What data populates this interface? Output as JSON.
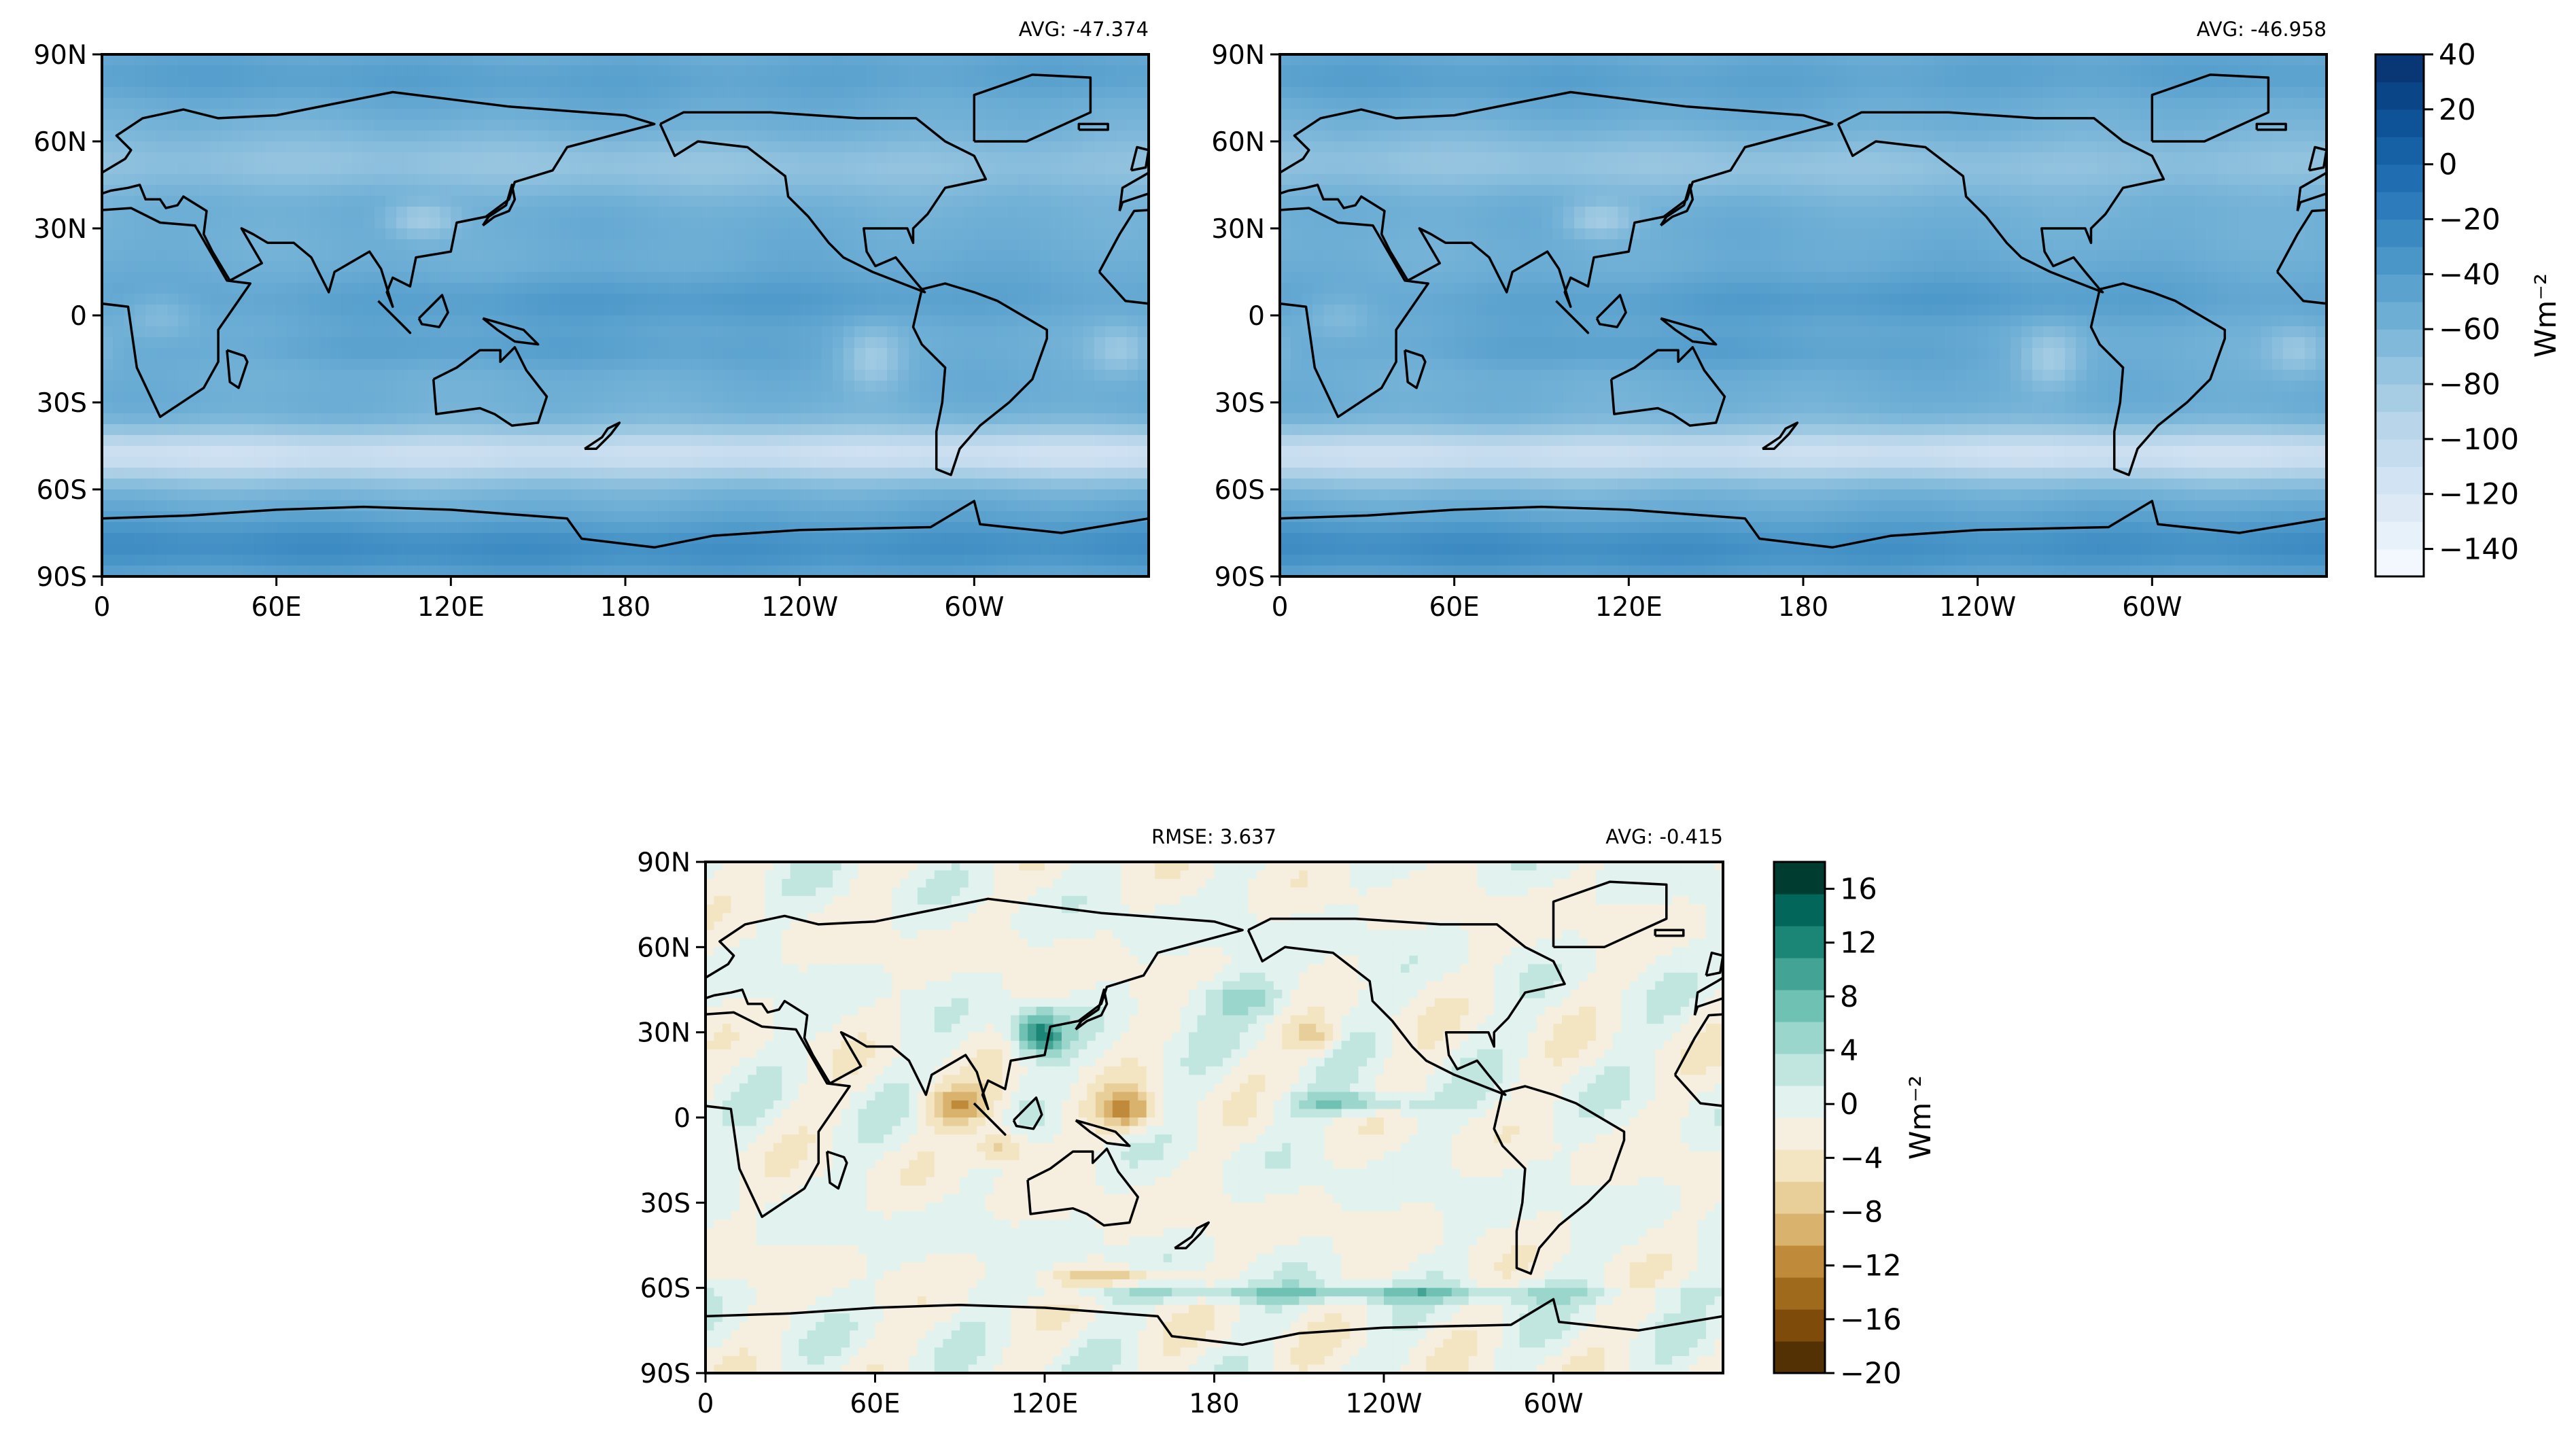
{
  "colors": {
    "blues_scale": [
      "#f7fbff",
      "#e3eef8",
      "#cfe1f2",
      "#b5d4e9",
      "#93c3df",
      "#6daed5",
      "#4b97c9",
      "#2f7ebc",
      "#1864aa",
      "#0a4a90",
      "#08306b"
    ],
    "diff_brown": [
      "#543005",
      "#7f4b0b",
      "#a06a1d",
      "#bf8a3a",
      "#d9b36e",
      "#e8cf9a",
      "#f3e4c2",
      "#f6efdf"
    ],
    "diff_green": [
      "#e1f2ef",
      "#c0e6df",
      "#9ad6cb",
      "#6fc1b3",
      "#43a496",
      "#1c8676",
      "#02665a",
      "#003c30"
    ],
    "outline": "#000000"
  },
  "chart_data": [
    {
      "type": "heatmap",
      "panel": "top-left",
      "title": "",
      "stat_right": "AVG: -47.374",
      "x_ticks": [
        "0",
        "60E",
        "120E",
        "180",
        "120W",
        "60W"
      ],
      "y_ticks": [
        "90N",
        "60N",
        "30N",
        "0",
        "30S",
        "60S",
        "90S"
      ],
      "xlim": [
        0,
        360
      ],
      "ylim": [
        -90,
        90
      ],
      "colormap": "Blues",
      "avg": -47.374
    },
    {
      "type": "heatmap",
      "panel": "top-right",
      "title": "",
      "stat_right": "AVG: -46.958",
      "x_ticks": [
        "0",
        "60E",
        "120E",
        "180",
        "120W",
        "60W"
      ],
      "y_ticks": [
        "90N",
        "60N",
        "30N",
        "0",
        "30S",
        "60S",
        "90S"
      ],
      "xlim": [
        0,
        360
      ],
      "ylim": [
        -90,
        90
      ],
      "colormap": "Blues",
      "avg": -46.958,
      "colorbar": {
        "ticks": [
          "40",
          "20",
          "0",
          "−20",
          "−40",
          "−60",
          "−80",
          "−100",
          "−120",
          "−140"
        ],
        "range": [
          -150,
          40
        ],
        "label": "Wm⁻²"
      }
    },
    {
      "type": "heatmap",
      "panel": "bottom-center",
      "title": "",
      "stat_left": "RMSE: 3.637",
      "stat_right": "AVG: -0.415",
      "x_ticks": [
        "0",
        "60E",
        "120E",
        "180",
        "120W",
        "60W"
      ],
      "y_ticks": [
        "90N",
        "60N",
        "30N",
        "0",
        "30S",
        "60S",
        "90S"
      ],
      "xlim": [
        0,
        360
      ],
      "ylim": [
        -90,
        90
      ],
      "colormap": "BrBG",
      "rmse": 3.637,
      "avg": -0.415,
      "colorbar": {
        "ticks": [
          "16",
          "12",
          "8",
          "4",
          "0",
          "−4",
          "−8",
          "−12",
          "−16",
          "−20"
        ],
        "range": [
          -20,
          18
        ],
        "label": "Wm⁻²"
      }
    }
  ]
}
